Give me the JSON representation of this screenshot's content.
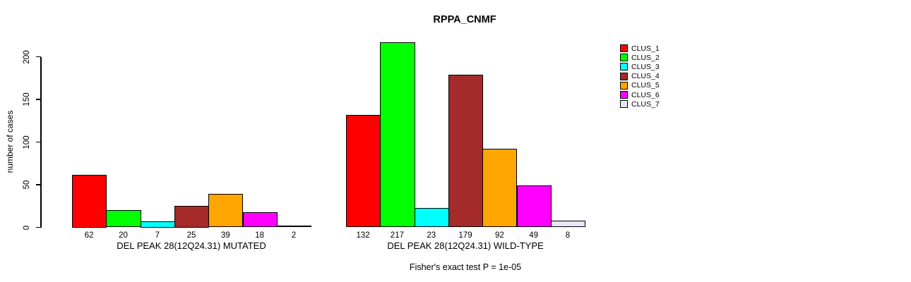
{
  "page": {
    "background_color": "#ffffff",
    "text_color": "#000000"
  },
  "chart_data": {
    "type": "bar",
    "title": "RPPA_CNMF",
    "xlabel": "",
    "ylabel": "number of cases",
    "yticks": [
      0,
      50,
      100,
      150,
      200
    ],
    "ylim": [
      0,
      220
    ],
    "grid": false,
    "bar_border_color": "#000000",
    "legend_position": "right",
    "legend": [
      {
        "name": "CLUS_1",
        "color": "#FF0000"
      },
      {
        "name": "CLUS_2",
        "color": "#00FF00"
      },
      {
        "name": "CLUS_3",
        "color": "#00FFFF"
      },
      {
        "name": "CLUS_4",
        "color": "#A52A2A"
      },
      {
        "name": "CLUS_5",
        "color": "#FFA500"
      },
      {
        "name": "CLUS_6",
        "color": "#FF00FF"
      },
      {
        "name": "CLUS_7",
        "color": "#E6E6FA"
      }
    ],
    "categories": [
      "CLUS_1",
      "CLUS_2",
      "CLUS_3",
      "CLUS_4",
      "CLUS_5",
      "CLUS_6",
      "CLUS_7"
    ],
    "groups": [
      {
        "label": "DEL PEAK 28(12Q24.31) MUTATED",
        "values": [
          62,
          20,
          7,
          25,
          39,
          18,
          2
        ]
      },
      {
        "label": "DEL PEAK 28(12Q24.31) WILD-TYPE",
        "values": [
          132,
          217,
          23,
          179,
          92,
          49,
          8
        ]
      }
    ],
    "footnote": "Fisher's exact test P = 1e-05"
  }
}
